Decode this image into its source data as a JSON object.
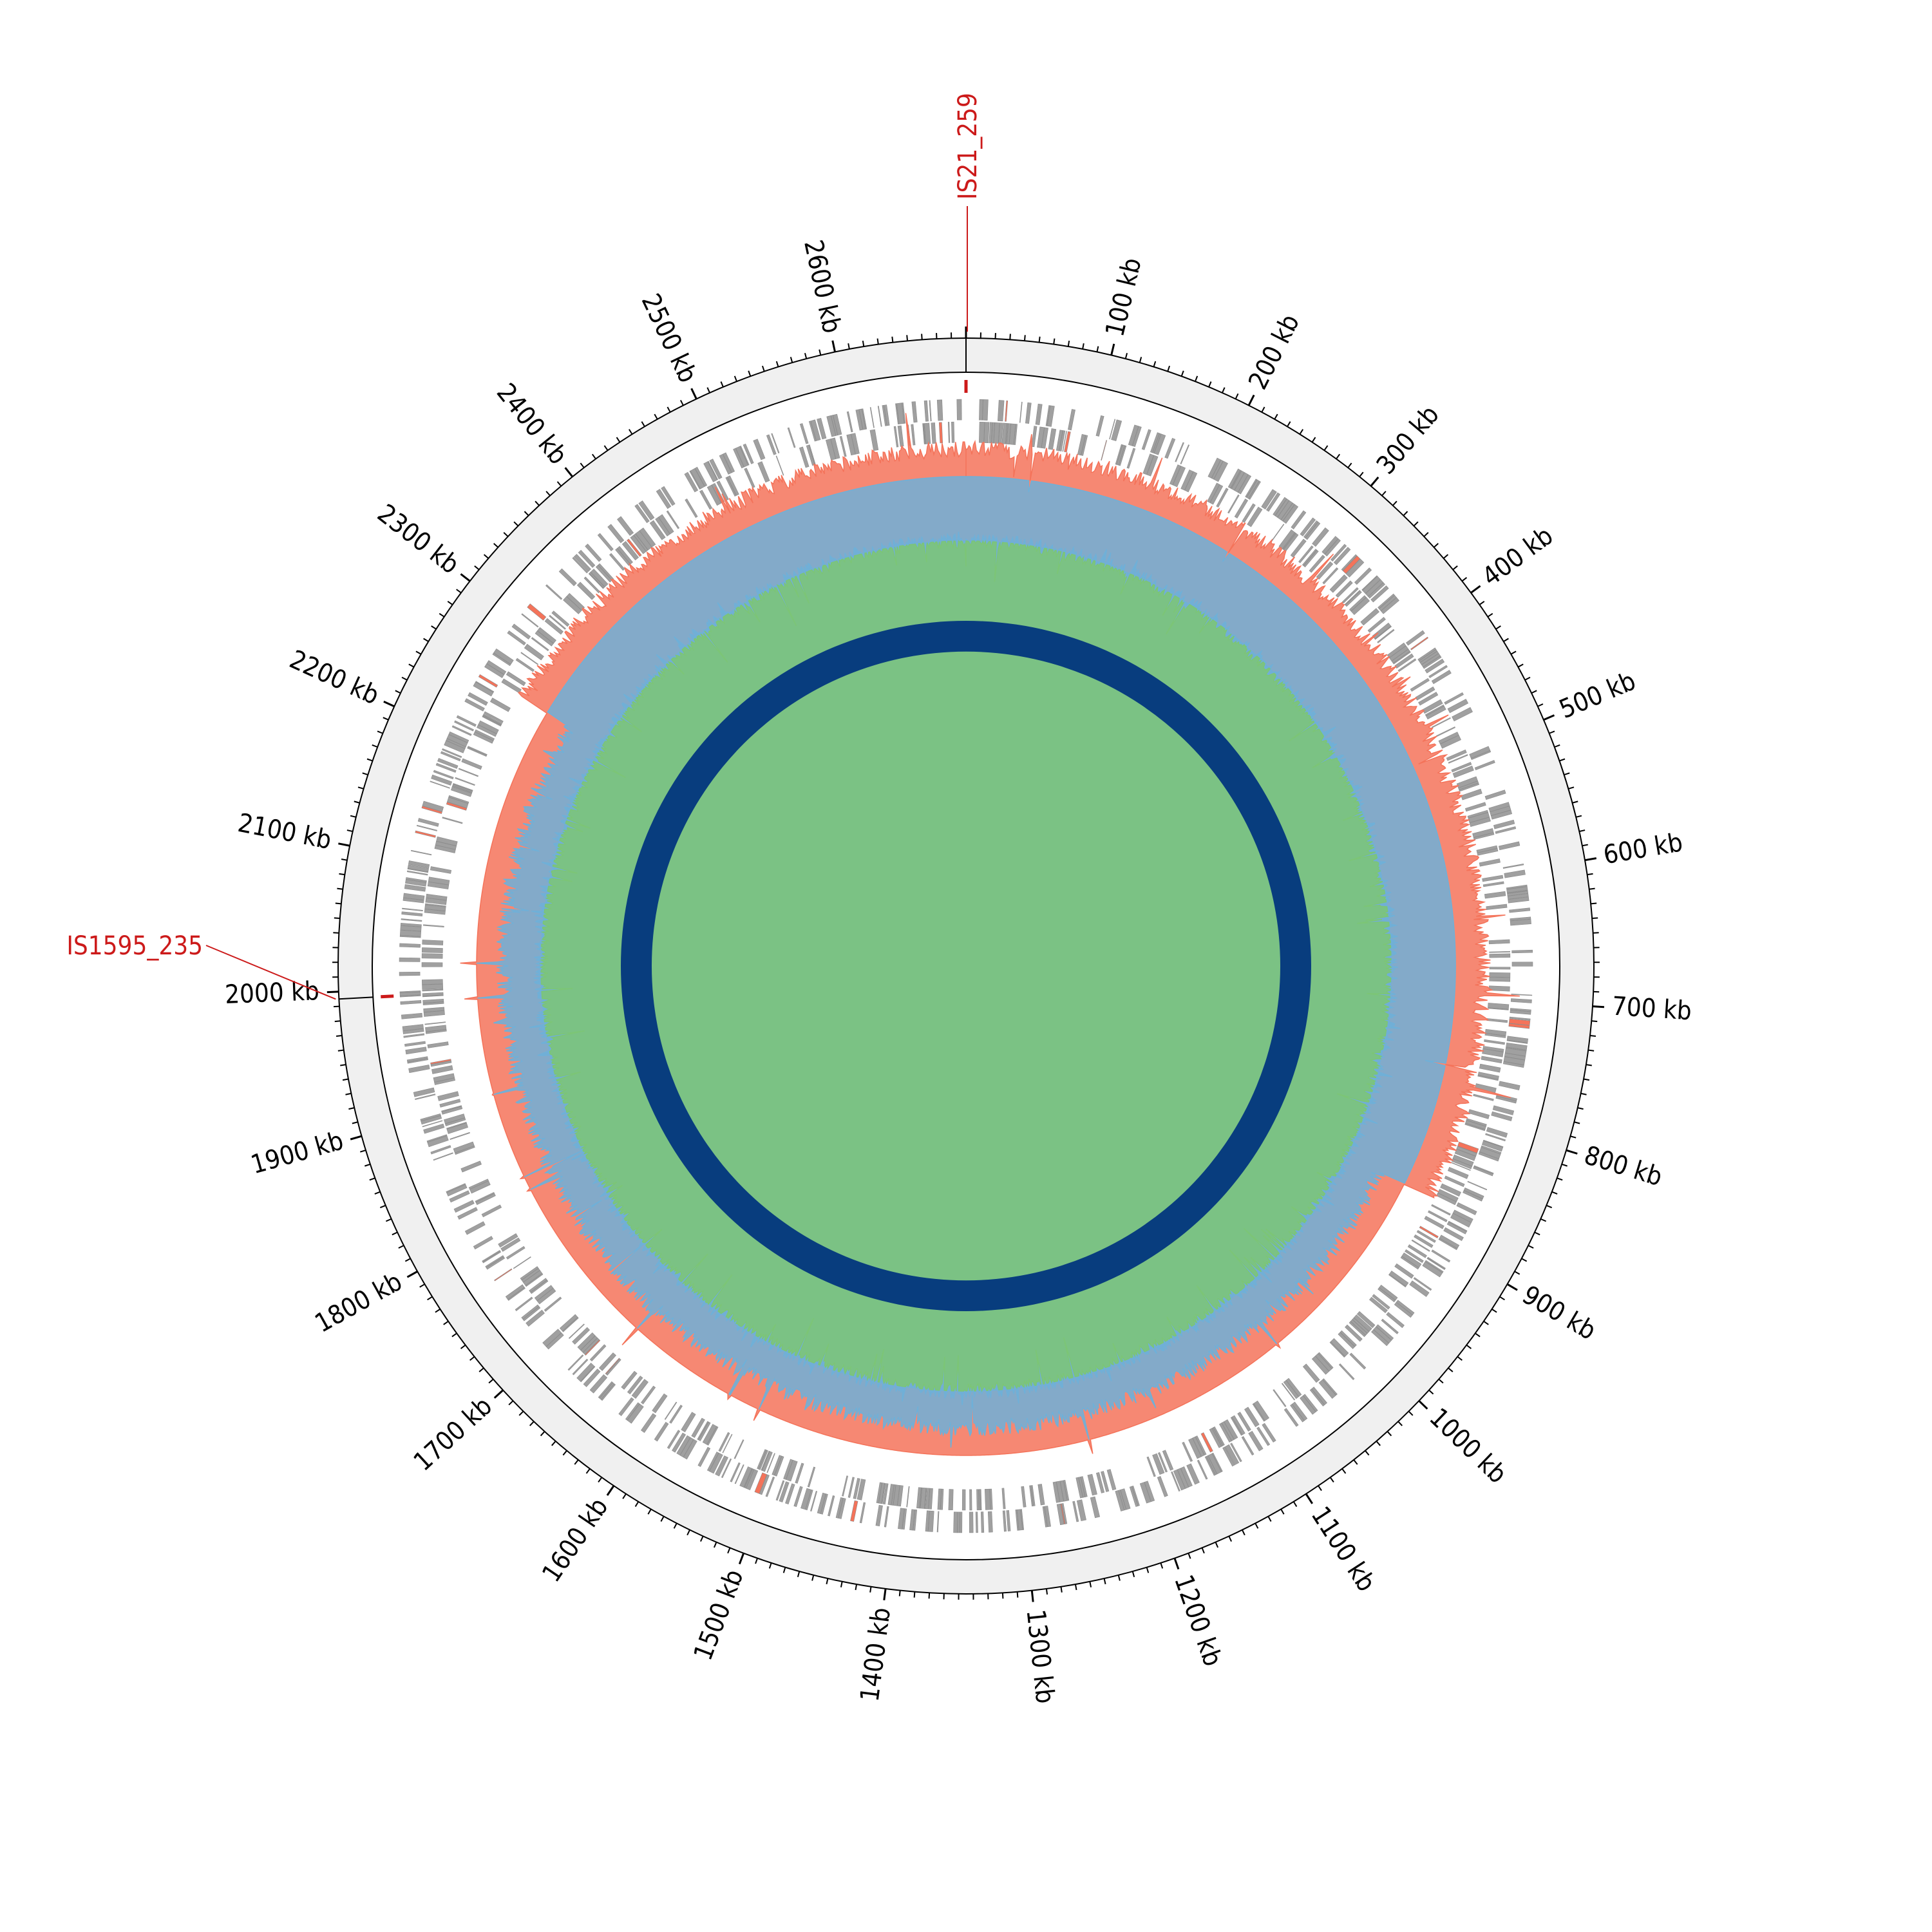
{
  "chart_data": {
    "type": "circular-genome",
    "genome_length_kb": 2690,
    "units": "kb",
    "major_tick_interval_kb": 100,
    "minor_tick_interval_kb": 10,
    "tick_labels": [
      "100 kb",
      "200 kb",
      "300 kb",
      "400 kb",
      "500 kb",
      "600 kb",
      "700 kb",
      "800 kb",
      "900 kb",
      "1000 kb",
      "1100 kb",
      "1200 kb",
      "1300 kb",
      "1400 kb",
      "1500 kb",
      "1600 kb",
      "1700 kb",
      "1800 kb",
      "1900 kb",
      "2000 kb",
      "2100 kb",
      "2200 kb",
      "2300 kb",
      "2400 kb",
      "2500 kb",
      "2600 kb"
    ],
    "markers": [
      {
        "label": "IS21_259",
        "position_kb": 0,
        "color": "#cc1a1a"
      },
      {
        "label": "IS1595_235",
        "position_kb": 1995,
        "color": "#cc1a1a"
      }
    ],
    "tracks": [
      {
        "name": "genes",
        "color": "#a0a0a0",
        "highlight_color": "#f4735a"
      },
      {
        "name": "gc-skew",
        "positive_color": "#f4735a",
        "negative_color": "#6fb0d8",
        "positive_range_kb": [
          2250,
          870
        ]
      },
      {
        "name": "gc-content",
        "above_color": "#6fb0d8",
        "below_color": "#7cc576"
      },
      {
        "name": "inner-ring",
        "color": "#083d7e"
      }
    ],
    "colors": {
      "backbone": "#f0f0f0",
      "tick": "#000000"
    }
  }
}
